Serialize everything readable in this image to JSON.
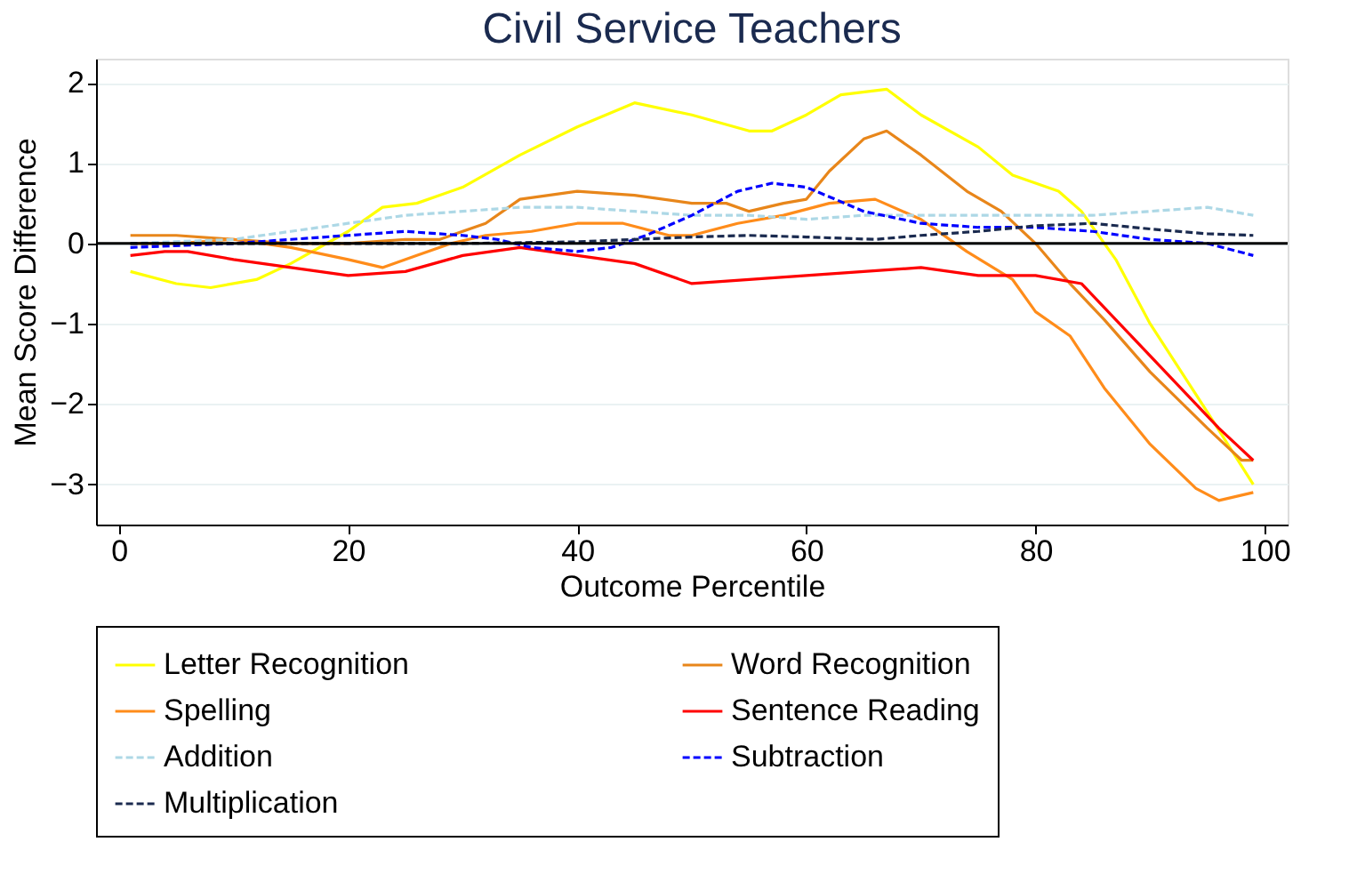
{
  "chart_data": {
    "type": "line",
    "title": "Civil Service Teachers",
    "xlabel": "Outcome Percentile",
    "ylabel": "Mean Score Difference",
    "xlim": [
      -2,
      102
    ],
    "xticks": [
      0,
      20,
      40,
      60,
      80,
      100
    ],
    "ylim": [
      -3.5,
      2.3
    ],
    "yticks": [
      -3,
      -2,
      -1,
      0,
      1,
      2
    ],
    "grid": "y",
    "legend": "bottom",
    "ref_lines": [
      {
        "axis": "y",
        "value": 0,
        "color": "#000000",
        "line_style": "solid"
      }
    ],
    "series": [
      {
        "name": "Letter Recognition",
        "color": "#ffff00",
        "line_style": "solid",
        "x": [
          1,
          5,
          8,
          12,
          15,
          20,
          23,
          26,
          30,
          35,
          40,
          45,
          50,
          55,
          57,
          60,
          63,
          67,
          70,
          75,
          78,
          82,
          84,
          87,
          90,
          95,
          99
        ],
        "values": [
          -0.35,
          -0.5,
          -0.55,
          -0.45,
          -0.25,
          0.15,
          0.45,
          0.5,
          0.7,
          1.1,
          1.45,
          1.75,
          1.6,
          1.4,
          1.4,
          1.6,
          1.85,
          1.92,
          1.6,
          1.2,
          0.85,
          0.65,
          0.4,
          -0.2,
          -1.0,
          -2.1,
          -3.0
        ]
      },
      {
        "name": "Word Recognition",
        "color": "#e8861a",
        "line_style": "solid",
        "x": [
          1,
          5,
          10,
          15,
          20,
          25,
          28,
          32,
          35,
          40,
          45,
          50,
          53,
          55,
          58,
          60,
          62,
          65,
          67,
          70,
          74,
          77,
          80,
          83,
          86,
          90,
          95,
          98,
          99
        ],
        "values": [
          0.1,
          0.1,
          0.05,
          0.0,
          0.0,
          0.05,
          0.05,
          0.25,
          0.55,
          0.65,
          0.6,
          0.5,
          0.5,
          0.4,
          0.5,
          0.55,
          0.9,
          1.3,
          1.4,
          1.1,
          0.65,
          0.4,
          0.0,
          -0.5,
          -0.95,
          -1.6,
          -2.3,
          -2.7,
          -2.7
        ]
      },
      {
        "name": "Spelling",
        "color": "#ff8c1a",
        "line_style": "solid",
        "x": [
          1,
          5,
          10,
          15,
          20,
          23,
          26,
          29,
          32,
          36,
          40,
          44,
          48,
          50,
          54,
          58,
          62,
          66,
          70,
          74,
          78,
          80,
          83,
          86,
          90,
          94,
          96,
          99
        ],
        "values": [
          0.0,
          0.0,
          0.05,
          -0.05,
          -0.2,
          -0.3,
          -0.15,
          0.0,
          0.1,
          0.15,
          0.25,
          0.25,
          0.1,
          0.1,
          0.25,
          0.35,
          0.5,
          0.55,
          0.3,
          -0.1,
          -0.45,
          -0.85,
          -1.15,
          -1.8,
          -2.5,
          -3.05,
          -3.2,
          -3.1
        ]
      },
      {
        "name": "Sentence Reading",
        "color": "#ff0000",
        "line_style": "solid",
        "x": [
          1,
          4,
          6,
          10,
          15,
          20,
          25,
          30,
          35,
          40,
          45,
          50,
          55,
          60,
          65,
          70,
          75,
          80,
          84,
          88,
          92,
          96,
          99
        ],
        "values": [
          -0.15,
          -0.1,
          -0.1,
          -0.2,
          -0.3,
          -0.4,
          -0.35,
          -0.15,
          -0.05,
          -0.15,
          -0.25,
          -0.5,
          -0.45,
          -0.4,
          -0.35,
          -0.3,
          -0.4,
          -0.4,
          -0.5,
          -1.1,
          -1.7,
          -2.3,
          -2.7
        ]
      },
      {
        "name": "Addition",
        "color": "#add8e6",
        "line_style": "dashed",
        "x": [
          1,
          10,
          15,
          20,
          25,
          30,
          35,
          40,
          45,
          50,
          55,
          60,
          65,
          70,
          75,
          80,
          85,
          90,
          95,
          99
        ],
        "values": [
          0.0,
          0.05,
          0.15,
          0.25,
          0.35,
          0.4,
          0.45,
          0.45,
          0.4,
          0.35,
          0.35,
          0.3,
          0.35,
          0.35,
          0.35,
          0.35,
          0.35,
          0.4,
          0.45,
          0.35
        ]
      },
      {
        "name": "Subtraction",
        "color": "#0000ff",
        "line_style": "dashed",
        "x": [
          1,
          10,
          15,
          20,
          25,
          30,
          33,
          36,
          40,
          43,
          46,
          50,
          54,
          57,
          60,
          65,
          70,
          75,
          80,
          85,
          90,
          95,
          99
        ],
        "values": [
          -0.05,
          0.0,
          0.05,
          0.1,
          0.15,
          0.1,
          0.05,
          -0.05,
          -0.1,
          -0.05,
          0.1,
          0.35,
          0.65,
          0.75,
          0.7,
          0.4,
          0.25,
          0.2,
          0.2,
          0.15,
          0.05,
          0.0,
          -0.15
        ]
      },
      {
        "name": "Multiplication",
        "color": "#1a2a4f",
        "line_style": "dashed",
        "x": [
          1,
          10,
          20,
          30,
          40,
          50,
          55,
          60,
          66,
          70,
          75,
          80,
          85,
          90,
          95,
          99
        ],
        "values": [
          0.0,
          0.0,
          0.0,
          0.0,
          0.02,
          0.08,
          0.1,
          0.08,
          0.05,
          0.1,
          0.15,
          0.22,
          0.25,
          0.18,
          0.12,
          0.1
        ]
      }
    ]
  }
}
